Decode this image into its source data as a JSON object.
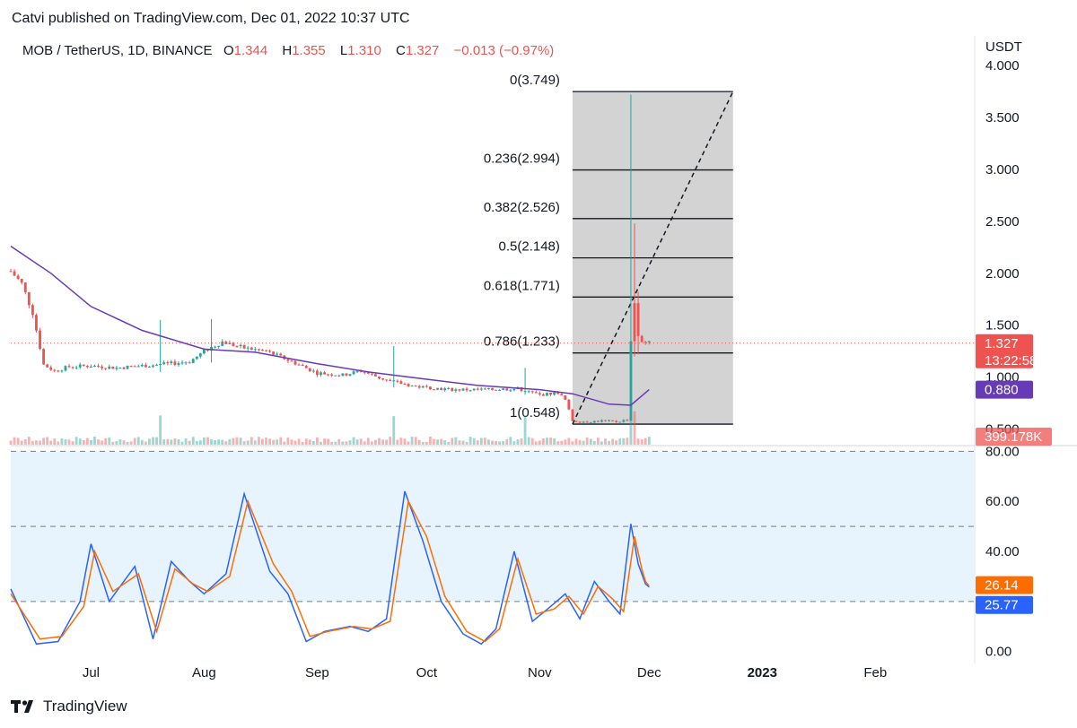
{
  "header": {
    "published": "Catvi published on TradingView.com, Dec 01, 2022 10:37 UTC"
  },
  "legend": {
    "symbol": "MOB / TetherUS, 1D, BINANCE",
    "o_label": "O",
    "o_value": "1.344",
    "h_label": "H",
    "h_value": "1.355",
    "l_label": "L",
    "l_value": "1.310",
    "c_label": "C",
    "c_value": "1.327",
    "change": "−0.013 (−0.97%)"
  },
  "colors": {
    "up": "#26a69a",
    "down": "#ef5350",
    "ma": "#673ab7",
    "rsi_k": "#2962ff",
    "rsi_d": "#ff6d00",
    "fib_fill": "#d1d1d1"
  },
  "footer": {
    "brand": "TradingView",
    "logo_icon": "tradingview-logo-icon"
  },
  "chart_data": [
    {
      "type": "candlestick",
      "unit_label": "USDT",
      "ylim": [
        0.35,
        4.0
      ],
      "y_ticks": [
        "0.500",
        "1.000",
        "1.500",
        "2.000",
        "2.500",
        "3.000",
        "3.500",
        "4.000"
      ],
      "x_ticks": [
        "Jul",
        "Aug",
        "Sep",
        "Oct",
        "Nov",
        "Dec",
        "2023",
        "Feb"
      ],
      "x_tick_dates": [
        "2022-07-01",
        "2022-08-01",
        "2022-09-01",
        "2022-10-01",
        "2022-11-01",
        "2022-12-01",
        "2023-01-01",
        "2023-02-01"
      ],
      "x_range": [
        "2022-06-09",
        "2023-02-28"
      ],
      "price_path": [
        [
          "2022-06-09",
          2.02
        ],
        [
          "2022-06-12",
          1.9
        ],
        [
          "2022-06-15",
          1.62
        ],
        [
          "2022-06-18",
          1.12
        ],
        [
          "2022-06-21",
          1.06
        ],
        [
          "2022-06-25",
          1.1
        ],
        [
          "2022-07-01",
          1.11
        ],
        [
          "2022-07-08",
          1.09
        ],
        [
          "2022-07-15",
          1.11
        ],
        [
          "2022-07-20",
          1.12
        ],
        [
          "2022-07-28",
          1.15
        ],
        [
          "2022-08-02",
          1.27
        ],
        [
          "2022-08-06",
          1.34
        ],
        [
          "2022-08-12",
          1.28
        ],
        [
          "2022-08-18",
          1.25
        ],
        [
          "2022-08-25",
          1.15
        ],
        [
          "2022-09-01",
          1.04
        ],
        [
          "2022-09-08",
          1.02
        ],
        [
          "2022-09-13",
          1.06
        ],
        [
          "2022-09-20",
          0.97
        ],
        [
          "2022-09-28",
          0.91
        ],
        [
          "2022-10-08",
          0.88
        ],
        [
          "2022-10-18",
          0.88
        ],
        [
          "2022-10-26",
          0.89
        ],
        [
          "2022-11-01",
          0.83
        ],
        [
          "2022-11-06",
          0.85
        ],
        [
          "2022-11-08",
          0.78
        ],
        [
          "2022-11-10",
          0.58
        ],
        [
          "2022-11-14",
          0.57
        ],
        [
          "2022-11-18",
          0.58
        ],
        [
          "2022-11-22",
          0.57
        ],
        [
          "2022-11-25",
          0.59
        ],
        [
          "2022-11-26",
          1.35
        ],
        [
          "2022-11-27",
          1.7
        ],
        [
          "2022-11-28",
          1.4
        ],
        [
          "2022-11-29",
          1.35
        ],
        [
          "2022-11-30",
          1.34
        ],
        [
          "2022-12-01",
          1.327
        ]
      ],
      "spikes": [
        {
          "date": "2022-07-20",
          "high": 1.55,
          "low": 1.05,
          "dir": "up"
        },
        {
          "date": "2022-08-03",
          "high": 1.56,
          "low": 1.14,
          "dir": "up"
        },
        {
          "date": "2022-09-22",
          "high": 1.3,
          "low": 0.9,
          "dir": "up"
        },
        {
          "date": "2022-10-28",
          "high": 1.09,
          "low": 0.83,
          "dir": "up"
        },
        {
          "date": "2022-11-26",
          "high": 3.72,
          "low": 0.6,
          "dir": "up"
        },
        {
          "date": "2022-11-27",
          "high": 2.48,
          "low": 1.2,
          "dir": "down"
        },
        {
          "date": "2022-11-28",
          "high": 1.82,
          "low": 1.22,
          "dir": "down"
        }
      ],
      "moving_average": [
        [
          "2022-06-09",
          2.26
        ],
        [
          "2022-06-20",
          2.0
        ],
        [
          "2022-07-01",
          1.68
        ],
        [
          "2022-07-15",
          1.45
        ],
        [
          "2022-08-01",
          1.27
        ],
        [
          "2022-08-15",
          1.24
        ],
        [
          "2022-09-01",
          1.13
        ],
        [
          "2022-09-15",
          1.05
        ],
        [
          "2022-10-01",
          0.98
        ],
        [
          "2022-10-15",
          0.92
        ],
        [
          "2022-11-01",
          0.88
        ],
        [
          "2022-11-10",
          0.84
        ],
        [
          "2022-11-20",
          0.74
        ],
        [
          "2022-11-26",
          0.73
        ],
        [
          "2022-12-01",
          0.88
        ]
      ],
      "volume_spikes": [
        "2022-07-20",
        "2022-09-22",
        "2022-10-28",
        "2022-11-26",
        "2022-11-27"
      ],
      "current_price": {
        "value": 1.327,
        "label": "1.327",
        "countdown": "13:22:58"
      },
      "ma_value": {
        "value": 0.88,
        "label": "0.880"
      },
      "volume_label": "399.178K",
      "fibonacci": {
        "start": {
          "date": "2022-11-10",
          "price": 0.548
        },
        "end": {
          "date": "2022-12-24",
          "price": 3.749
        },
        "levels": [
          {
            "ratio": 0,
            "price": 3.749,
            "label": "0(3.749)"
          },
          {
            "ratio": 0.236,
            "price": 2.994,
            "label": "0.236(2.994)"
          },
          {
            "ratio": 0.382,
            "price": 2.526,
            "label": "0.382(2.526)"
          },
          {
            "ratio": 0.5,
            "price": 2.148,
            "label": "0.5(2.148)"
          },
          {
            "ratio": 0.618,
            "price": 1.771,
            "label": "0.618(1.771)"
          },
          {
            "ratio": 0.786,
            "price": 1.233,
            "label": "0.786(1.233)"
          },
          {
            "ratio": 1,
            "price": 0.548,
            "label": "1(0.548)"
          }
        ]
      }
    },
    {
      "type": "line",
      "name": "stochastic-rsi",
      "ylim": [
        -3,
        83
      ],
      "y_ticks": [
        "0.00",
        "20.00",
        "40.00",
        "60.00",
        "80.00"
      ],
      "bands": [
        20,
        50,
        80
      ],
      "series": [
        {
          "color": "#2962ff",
          "points": [
            [
              "2022-06-09",
              25
            ],
            [
              "2022-06-16",
              3
            ],
            [
              "2022-06-22",
              4
            ],
            [
              "2022-06-28",
              20
            ],
            [
              "2022-07-01",
              43
            ],
            [
              "2022-07-06",
              20
            ],
            [
              "2022-07-13",
              34
            ],
            [
              "2022-07-18",
              5
            ],
            [
              "2022-07-23",
              36
            ],
            [
              "2022-07-28",
              28
            ],
            [
              "2022-08-01",
              23
            ],
            [
              "2022-08-07",
              31
            ],
            [
              "2022-08-12",
              63
            ],
            [
              "2022-08-19",
              32
            ],
            [
              "2022-08-24",
              23
            ],
            [
              "2022-08-29",
              4
            ],
            [
              "2022-09-03",
              8
            ],
            [
              "2022-09-10",
              10
            ],
            [
              "2022-09-15",
              8
            ],
            [
              "2022-09-20",
              13
            ],
            [
              "2022-09-25",
              64
            ],
            [
              "2022-09-30",
              44
            ],
            [
              "2022-10-05",
              20
            ],
            [
              "2022-10-11",
              7
            ],
            [
              "2022-10-16",
              3
            ],
            [
              "2022-10-20",
              9
            ],
            [
              "2022-10-25",
              40
            ],
            [
              "2022-10-30",
              12
            ],
            [
              "2022-11-04",
              18
            ],
            [
              "2022-11-08",
              23
            ],
            [
              "2022-11-12",
              13
            ],
            [
              "2022-11-16",
              28
            ],
            [
              "2022-11-20",
              20
            ],
            [
              "2022-11-23",
              15
            ],
            [
              "2022-11-26",
              51
            ],
            [
              "2022-11-28",
              35
            ],
            [
              "2022-11-30",
              27
            ],
            [
              "2022-12-01",
              25.77
            ]
          ]
        },
        {
          "color": "#ff6d00",
          "points": [
            [
              "2022-06-09",
              23
            ],
            [
              "2022-06-17",
              5
            ],
            [
              "2022-06-23",
              6
            ],
            [
              "2022-06-29",
              18
            ],
            [
              "2022-07-02",
              40
            ],
            [
              "2022-07-07",
              24
            ],
            [
              "2022-07-14",
              31
            ],
            [
              "2022-07-19",
              8
            ],
            [
              "2022-07-24",
              33
            ],
            [
              "2022-07-29",
              27
            ],
            [
              "2022-08-02",
              24
            ],
            [
              "2022-08-08",
              30
            ],
            [
              "2022-08-13",
              60
            ],
            [
              "2022-08-20",
              35
            ],
            [
              "2022-08-25",
              24
            ],
            [
              "2022-08-30",
              6
            ],
            [
              "2022-09-04",
              8
            ],
            [
              "2022-09-11",
              10
            ],
            [
              "2022-09-16",
              9
            ],
            [
              "2022-09-21",
              12
            ],
            [
              "2022-09-26",
              60
            ],
            [
              "2022-10-01",
              46
            ],
            [
              "2022-10-06",
              22
            ],
            [
              "2022-10-12",
              8
            ],
            [
              "2022-10-17",
              4
            ],
            [
              "2022-10-21",
              9
            ],
            [
              "2022-10-26",
              37
            ],
            [
              "2022-10-31",
              15
            ],
            [
              "2022-11-05",
              17
            ],
            [
              "2022-11-09",
              22
            ],
            [
              "2022-11-13",
              15
            ],
            [
              "2022-11-17",
              26
            ],
            [
              "2022-11-21",
              21
            ],
            [
              "2022-11-24",
              16
            ],
            [
              "2022-11-27",
              46
            ],
            [
              "2022-11-29",
              33
            ],
            [
              "2022-11-30",
              28
            ],
            [
              "2022-12-01",
              26.14
            ]
          ]
        }
      ],
      "k_label": "25.77",
      "d_label": "26.14"
    }
  ]
}
